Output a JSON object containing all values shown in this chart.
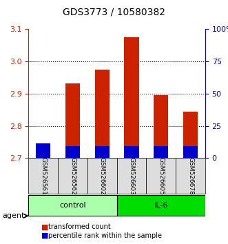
{
  "title": "GDS3773 / 10580382",
  "samples": [
    "GSM526561",
    "GSM526562",
    "GSM526602",
    "GSM526603",
    "GSM526605",
    "GSM526678"
  ],
  "red_values": [
    2.72,
    2.932,
    2.975,
    3.075,
    2.895,
    2.845
  ],
  "blue_values": [
    2.745,
    2.736,
    2.736,
    2.736,
    2.736,
    2.736
  ],
  "ymin": 2.7,
  "ymax": 3.1,
  "yticks_left": [
    2.7,
    2.8,
    2.9,
    3.0,
    3.1
  ],
  "yticks_right_vals": [
    0,
    25,
    50,
    75,
    100
  ],
  "yticks_right_labels": [
    "0",
    "25",
    "50",
    "75",
    "100%"
  ],
  "groups": [
    {
      "label": "control",
      "samples": [
        "GSM526561",
        "GSM526562",
        "GSM526602"
      ],
      "color": "#90EE90"
    },
    {
      "label": "IL-6",
      "samples": [
        "GSM526603",
        "GSM526605",
        "GSM526678"
      ],
      "color": "#00CC00"
    }
  ],
  "bar_width": 0.5,
  "red_color": "#CC2200",
  "blue_color": "#0000CC",
  "bg_color": "#FFFFFF",
  "plot_bg": "#FFFFFF",
  "grid_color": "#000000",
  "legend_red_label": "transformed count",
  "legend_blue_label": "percentile rank within the sample",
  "agent_label": "agent",
  "xlabel_color": "#CC2200",
  "ylabel_right_color": "#0000BB"
}
